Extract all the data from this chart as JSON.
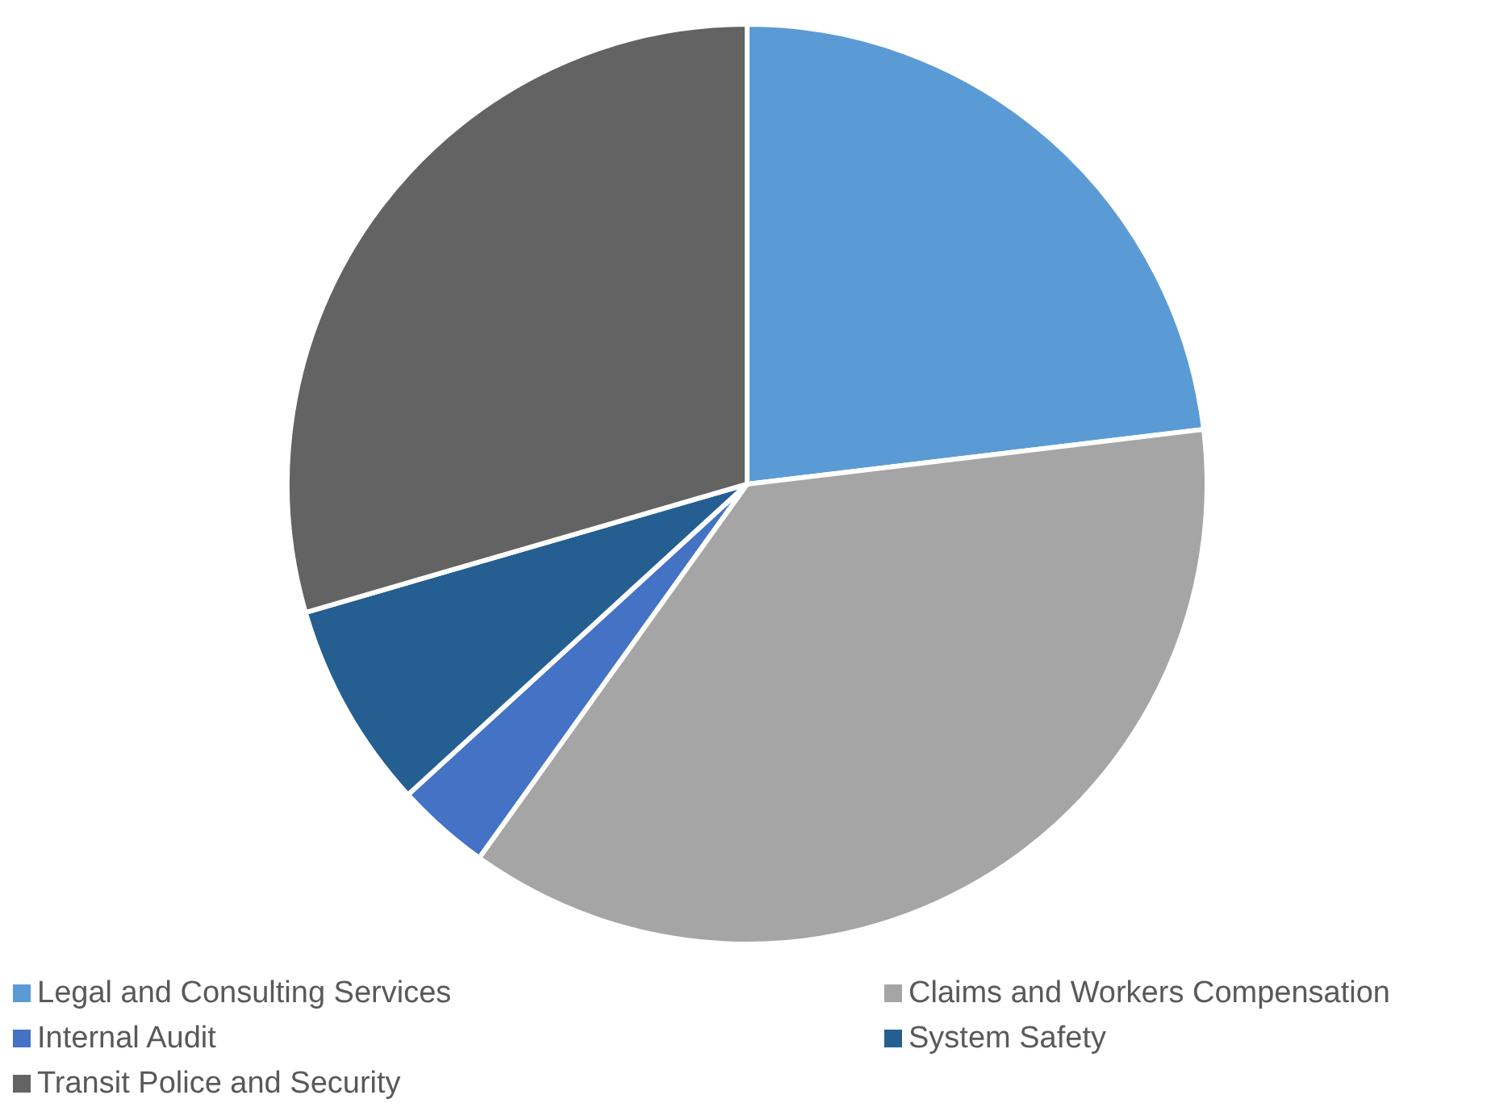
{
  "chart_data": {
    "type": "pie",
    "categories": [
      "Legal and Consulting Services",
      "Claims and Workers Compensation",
      "Internal Audit",
      "System Safety",
      "Transit Police and Security"
    ],
    "values": [
      23.1,
      36.8,
      3.3,
      7.3,
      29.5
    ],
    "colors": [
      "#5b9bd5",
      "#a5a5a5",
      "#4472c4",
      "#255e91",
      "#636363"
    ],
    "legend": "bottom"
  }
}
